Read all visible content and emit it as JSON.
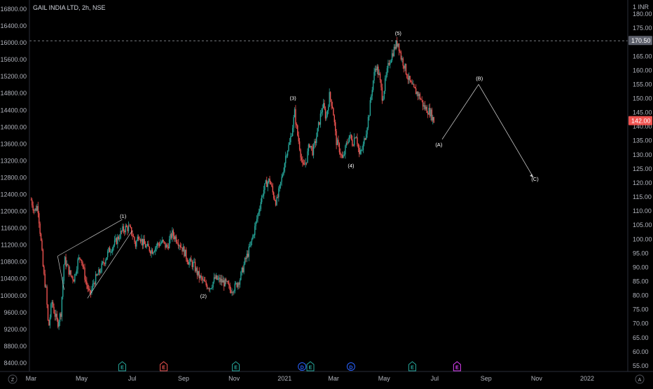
{
  "header": {
    "symbol": "GAIL INDIA LTD, 2h, NSE"
  },
  "corner": {
    "top_right_unit": "1 INR",
    "bottom_left_icon": "Z",
    "bottom_right_icon": "A"
  },
  "colors": {
    "background": "#000000",
    "up": "#26a69a",
    "down": "#ef5350",
    "text": "#b2b5be",
    "line": "#c8c8c8",
    "price_label_current": "#ef5350",
    "price_label_high": "#5d606b",
    "earnings": "#26a69a",
    "dividend": "#2962ff",
    "earnings_future": "#e040fb"
  },
  "chart_data": {
    "type": "candlestick",
    "title": "GAIL INDIA LTD, 2h, NSE",
    "left_axis": {
      "ticks": [
        "16800.00",
        "16400.00",
        "16000.00",
        "15600.00",
        "15200.00",
        "14800.00",
        "14400.00",
        "14000.00",
        "13600.00",
        "13200.00",
        "12800.00",
        "12400.00",
        "12000.00",
        "11600.00",
        "11200.00",
        "10800.00",
        "10400.00",
        "10000.00",
        "9600.00",
        "9200.00",
        "8800.00",
        "8400.00"
      ],
      "range": [
        8200,
        16950
      ]
    },
    "right_axis": {
      "ticks": [
        "180.00",
        "175.00",
        "170.00",
        "165.00",
        "160.00",
        "155.00",
        "150.00",
        "145.00",
        "140.00",
        "135.00",
        "130.00",
        "125.00",
        "120.00",
        "115.00",
        "110.00",
        "105.00",
        "100.00",
        "95.00",
        "90.00",
        "85.00",
        "80.00",
        "75.00",
        "70.00",
        "65.00",
        "60.00",
        "55.00"
      ],
      "range": [
        53,
        184
      ],
      "current_price": "142.00",
      "high_price": "170.50"
    },
    "x_axis": {
      "labels": [
        {
          "label": "Mar",
          "t": 0
        },
        {
          "label": "May",
          "t": 61
        },
        {
          "label": "Jul",
          "t": 122
        },
        {
          "label": "Sep",
          "t": 184
        },
        {
          "label": "Nov",
          "t": 245
        },
        {
          "label": "2021",
          "t": 306
        },
        {
          "label": "Mar",
          "t": 365
        },
        {
          "label": "May",
          "t": 426
        },
        {
          "label": "Jul",
          "t": 487
        },
        {
          "label": "Sep",
          "t": 549
        },
        {
          "label": "Nov",
          "t": 610
        },
        {
          "label": "2022",
          "t": 671
        }
      ],
      "range": [
        -2,
        720
      ]
    },
    "price_path": [
      {
        "t": 0,
        "p": 114
      },
      {
        "t": 4,
        "p": 110
      },
      {
        "t": 8,
        "p": 112
      },
      {
        "t": 12,
        "p": 99
      },
      {
        "t": 15,
        "p": 88
      },
      {
        "t": 18,
        "p": 82
      },
      {
        "t": 21,
        "p": 68
      },
      {
        "t": 25,
        "p": 78
      },
      {
        "t": 28,
        "p": 74
      },
      {
        "t": 32,
        "p": 70
      },
      {
        "t": 36,
        "p": 74
      },
      {
        "t": 40,
        "p": 93
      },
      {
        "t": 44,
        "p": 90
      },
      {
        "t": 48,
        "p": 87
      },
      {
        "t": 52,
        "p": 86
      },
      {
        "t": 56,
        "p": 92
      },
      {
        "t": 60,
        "p": 94
      },
      {
        "t": 66,
        "p": 85
      },
      {
        "t": 71,
        "p": 80
      },
      {
        "t": 76,
        "p": 85
      },
      {
        "t": 82,
        "p": 88
      },
      {
        "t": 88,
        "p": 92
      },
      {
        "t": 94,
        "p": 96
      },
      {
        "t": 100,
        "p": 98
      },
      {
        "t": 106,
        "p": 101
      },
      {
        "t": 110,
        "p": 103
      },
      {
        "t": 114,
        "p": 104
      },
      {
        "t": 118,
        "p": 104
      },
      {
        "t": 122,
        "p": 102
      },
      {
        "t": 126,
        "p": 98
      },
      {
        "t": 130,
        "p": 102
      },
      {
        "t": 134,
        "p": 99
      },
      {
        "t": 140,
        "p": 97
      },
      {
        "t": 146,
        "p": 96
      },
      {
        "t": 152,
        "p": 98
      },
      {
        "t": 158,
        "p": 99
      },
      {
        "t": 164,
        "p": 97
      },
      {
        "t": 170,
        "p": 102
      },
      {
        "t": 176,
        "p": 100
      },
      {
        "t": 184,
        "p": 96
      },
      {
        "t": 190,
        "p": 92
      },
      {
        "t": 196,
        "p": 91
      },
      {
        "t": 202,
        "p": 87
      },
      {
        "t": 210,
        "p": 84
      },
      {
        "t": 216,
        "p": 83
      },
      {
        "t": 222,
        "p": 86
      },
      {
        "t": 230,
        "p": 85
      },
      {
        "t": 236,
        "p": 84
      },
      {
        "t": 240,
        "p": 82
      },
      {
        "t": 246,
        "p": 83
      },
      {
        "t": 252,
        "p": 86
      },
      {
        "t": 258,
        "p": 92
      },
      {
        "t": 264,
        "p": 97
      },
      {
        "t": 270,
        "p": 104
      },
      {
        "t": 276,
        "p": 112
      },
      {
        "t": 280,
        "p": 117
      },
      {
        "t": 284,
        "p": 120
      },
      {
        "t": 288,
        "p": 121
      },
      {
        "t": 292,
        "p": 116
      },
      {
        "t": 296,
        "p": 113
      },
      {
        "t": 300,
        "p": 118
      },
      {
        "t": 304,
        "p": 124
      },
      {
        "t": 308,
        "p": 131
      },
      {
        "t": 312,
        "p": 134
      },
      {
        "t": 316,
        "p": 141
      },
      {
        "t": 318,
        "p": 145
      },
      {
        "t": 321,
        "p": 138
      },
      {
        "t": 324,
        "p": 133
      },
      {
        "t": 328,
        "p": 125
      },
      {
        "t": 332,
        "p": 128
      },
      {
        "t": 336,
        "p": 134
      },
      {
        "t": 340,
        "p": 131
      },
      {
        "t": 344,
        "p": 136
      },
      {
        "t": 348,
        "p": 142
      },
      {
        "t": 352,
        "p": 148
      },
      {
        "t": 356,
        "p": 143
      },
      {
        "t": 360,
        "p": 151
      },
      {
        "t": 364,
        "p": 147
      },
      {
        "t": 368,
        "p": 135
      },
      {
        "t": 372,
        "p": 132
      },
      {
        "t": 376,
        "p": 128
      },
      {
        "t": 380,
        "p": 133
      },
      {
        "t": 384,
        "p": 137
      },
      {
        "t": 388,
        "p": 134
      },
      {
        "t": 392,
        "p": 138
      },
      {
        "t": 396,
        "p": 130
      },
      {
        "t": 400,
        "p": 132
      },
      {
        "t": 404,
        "p": 138
      },
      {
        "t": 408,
        "p": 145
      },
      {
        "t": 412,
        "p": 155
      },
      {
        "t": 416,
        "p": 162
      },
      {
        "t": 420,
        "p": 158
      },
      {
        "t": 424,
        "p": 150
      },
      {
        "t": 428,
        "p": 157
      },
      {
        "t": 432,
        "p": 163
      },
      {
        "t": 436,
        "p": 166
      },
      {
        "t": 440,
        "p": 169
      },
      {
        "t": 443,
        "p": 170
      },
      {
        "t": 446,
        "p": 165
      },
      {
        "t": 450,
        "p": 162
      },
      {
        "t": 454,
        "p": 158
      },
      {
        "t": 458,
        "p": 155
      },
      {
        "t": 462,
        "p": 153
      },
      {
        "t": 466,
        "p": 152
      },
      {
        "t": 470,
        "p": 150
      },
      {
        "t": 474,
        "p": 147
      },
      {
        "t": 478,
        "p": 146
      },
      {
        "t": 482,
        "p": 145
      },
      {
        "t": 486,
        "p": 142
      }
    ],
    "wave_labels": [
      {
        "label": "(1)",
        "t": 111,
        "p": 107.5
      },
      {
        "label": "(2)",
        "t": 208,
        "p": 79.2
      },
      {
        "label": "(3)",
        "t": 316,
        "p": 149.5
      },
      {
        "label": "(4)",
        "t": 386,
        "p": 125.5
      },
      {
        "label": "(5)",
        "t": 443,
        "p": 172.5
      },
      {
        "label": "(A)",
        "t": 492,
        "p": 133
      },
      {
        "label": "(B)",
        "t": 541,
        "p": 156.5
      },
      {
        "label": "(C)",
        "t": 608,
        "p": 120.8
      }
    ],
    "projection": [
      {
        "t": 496,
        "p": 135.5
      },
      {
        "t": 540,
        "p": 155
      },
      {
        "t": 606,
        "p": 122
      }
    ],
    "channel_lines": [
      {
        "from": {
          "t": 32,
          "p": 94
        },
        "to": {
          "t": 110,
          "p": 107
        }
      },
      {
        "from": {
          "t": 68,
          "p": 79
        },
        "to": {
          "t": 122,
          "p": 103
        }
      },
      {
        "from": {
          "t": 32,
          "p": 94
        },
        "to": {
          "t": 40,
          "p": 82
        }
      }
    ],
    "events": [
      {
        "t": 110,
        "type": "E",
        "kind": "earnings"
      },
      {
        "t": 160,
        "type": "E",
        "kind": "earnings_past_red"
      },
      {
        "t": 247,
        "type": "E",
        "kind": "earnings"
      },
      {
        "t": 327,
        "type": "D",
        "kind": "dividend"
      },
      {
        "t": 337,
        "type": "E",
        "kind": "earnings"
      },
      {
        "t": 386,
        "type": "D",
        "kind": "dividend"
      },
      {
        "t": 460,
        "type": "E",
        "kind": "earnings"
      },
      {
        "t": 514,
        "type": "E",
        "kind": "earnings_future"
      }
    ],
    "grid": false,
    "legend": "none"
  }
}
